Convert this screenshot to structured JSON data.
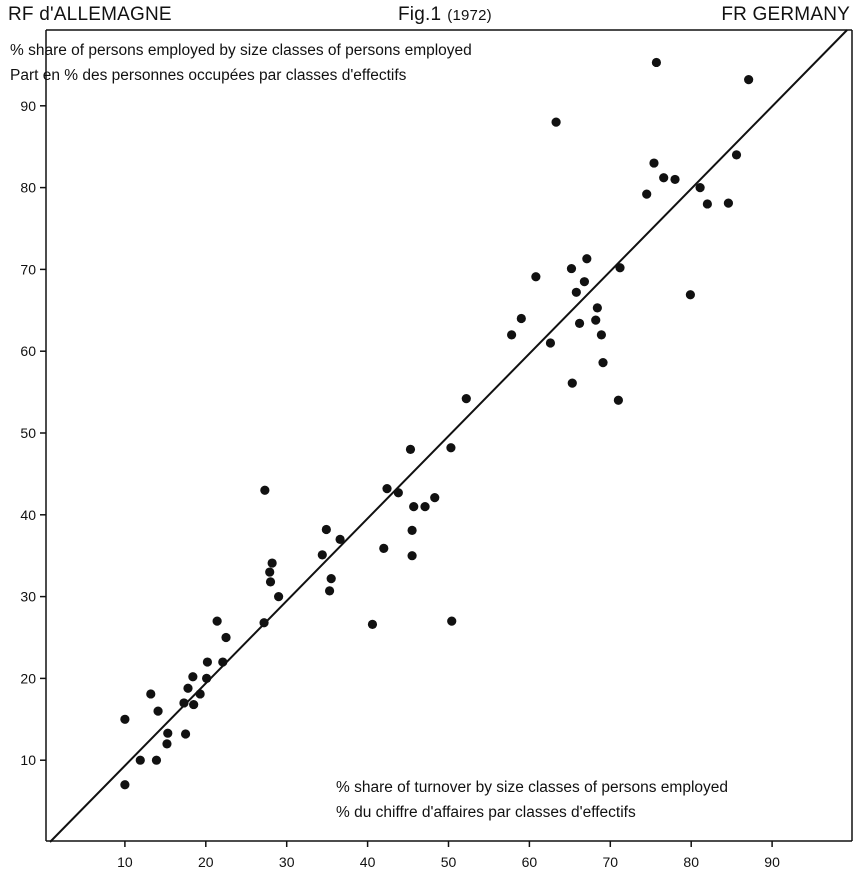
{
  "header": {
    "left": "RF d'ALLEMAGNE",
    "center": "Fig.1",
    "center_year": "(1972)",
    "right": "FR GERMANY"
  },
  "chart_data": {
    "type": "scatter",
    "ylabel": "% share of persons employed by size classes of persons employed",
    "ylabel_fr": "Part en % des personnes occupées par classes d'effectifs",
    "xlabel": "% share of turnover by size classes of persons employed",
    "xlabel_fr": "% du chiffre d'affaires par classes d'effectifs",
    "xlim": [
      0,
      100
    ],
    "ylim": [
      0,
      100
    ],
    "x_ticks": [
      10,
      20,
      30,
      40,
      50,
      60,
      70,
      80,
      90
    ],
    "y_ticks": [
      10,
      20,
      30,
      40,
      50,
      60,
      70,
      80,
      90
    ],
    "grid": false,
    "reference_line": {
      "from": [
        0,
        0
      ],
      "to": [
        100,
        100
      ]
    },
    "point_color": "#111111",
    "points": [
      [
        10.0,
        15.0
      ],
      [
        10.0,
        7.0
      ],
      [
        11.9,
        10.0
      ],
      [
        13.2,
        18.1
      ],
      [
        13.9,
        10.0
      ],
      [
        14.1,
        16.0
      ],
      [
        15.2,
        12.0
      ],
      [
        15.3,
        13.3
      ],
      [
        17.3,
        17.0
      ],
      [
        17.5,
        13.2
      ],
      [
        17.8,
        18.8
      ],
      [
        18.4,
        20.2
      ],
      [
        18.5,
        16.8
      ],
      [
        19.3,
        18.1
      ],
      [
        20.1,
        20.0
      ],
      [
        20.2,
        22.0
      ],
      [
        21.4,
        27.0
      ],
      [
        22.1,
        22.0
      ],
      [
        22.5,
        25.0
      ],
      [
        27.2,
        26.8
      ],
      [
        27.3,
        43.0
      ],
      [
        27.9,
        33.0
      ],
      [
        28.0,
        31.8
      ],
      [
        28.2,
        34.1
      ],
      [
        29.0,
        30.0
      ],
      [
        34.4,
        35.1
      ],
      [
        34.9,
        38.2
      ],
      [
        35.3,
        30.7
      ],
      [
        35.5,
        32.2
      ],
      [
        36.6,
        37.0
      ],
      [
        40.6,
        26.6
      ],
      [
        42.0,
        35.9
      ],
      [
        42.4,
        43.2
      ],
      [
        43.8,
        42.7
      ],
      [
        45.3,
        48.0
      ],
      [
        45.5,
        38.1
      ],
      [
        45.5,
        35.0
      ],
      [
        45.7,
        41.0
      ],
      [
        47.1,
        41.0
      ],
      [
        48.3,
        42.1
      ],
      [
        50.3,
        48.2
      ],
      [
        50.4,
        27.0
      ],
      [
        52.2,
        54.2
      ],
      [
        57.8,
        62.0
      ],
      [
        59.0,
        64.0
      ],
      [
        60.8,
        69.1
      ],
      [
        62.6,
        61.0
      ],
      [
        63.3,
        88.0
      ],
      [
        65.2,
        70.1
      ],
      [
        65.3,
        56.1
      ],
      [
        65.8,
        67.2
      ],
      [
        66.2,
        63.4
      ],
      [
        66.8,
        68.5
      ],
      [
        67.1,
        71.3
      ],
      [
        68.2,
        63.8
      ],
      [
        68.4,
        65.3
      ],
      [
        68.9,
        62.0
      ],
      [
        69.1,
        58.6
      ],
      [
        71.0,
        54.0
      ],
      [
        71.2,
        70.2
      ],
      [
        74.5,
        79.2
      ],
      [
        75.4,
        83.0
      ],
      [
        75.7,
        95.3
      ],
      [
        76.6,
        81.2
      ],
      [
        78.0,
        81.0
      ],
      [
        79.9,
        66.9
      ],
      [
        81.1,
        80.0
      ],
      [
        82.0,
        78.0
      ],
      [
        84.6,
        78.1
      ],
      [
        85.6,
        84.0
      ],
      [
        87.1,
        93.2
      ]
    ]
  }
}
